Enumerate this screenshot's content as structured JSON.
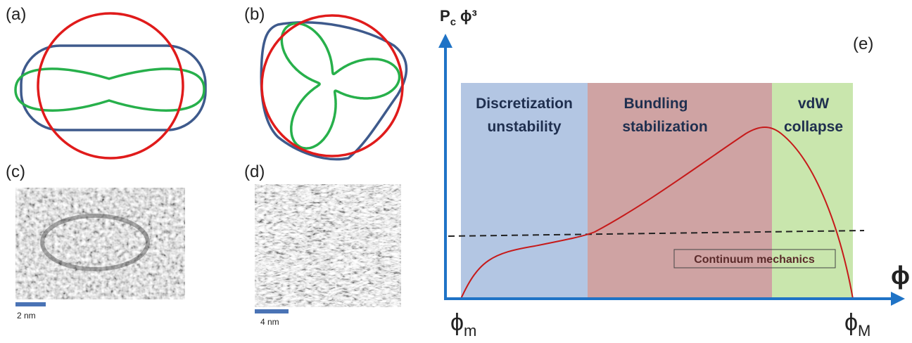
{
  "panels": {
    "a": "(a)",
    "b": "(b)",
    "c": "(c)",
    "d": "(d)",
    "e": "(e)"
  },
  "scale_bars": {
    "c": "2 nm",
    "d": "4 nm"
  },
  "plot": {
    "y_axis": {
      "symbol": "P",
      "subscript": "c",
      "rest": "ϕ³"
    },
    "x_axis": "ϕ",
    "x_start": {
      "symbol": "ϕ",
      "subscript": "m"
    },
    "x_end": {
      "symbol": "ϕ",
      "subscript": "M"
    },
    "regions": [
      {
        "lines": [
          "Discretization",
          "unstability"
        ]
      },
      {
        "lines": [
          "Bundling",
          "stabilization"
        ]
      },
      {
        "lines": [
          "vdW",
          "collapse"
        ]
      }
    ],
    "baseline_label": "Continuum mechanics"
  }
}
